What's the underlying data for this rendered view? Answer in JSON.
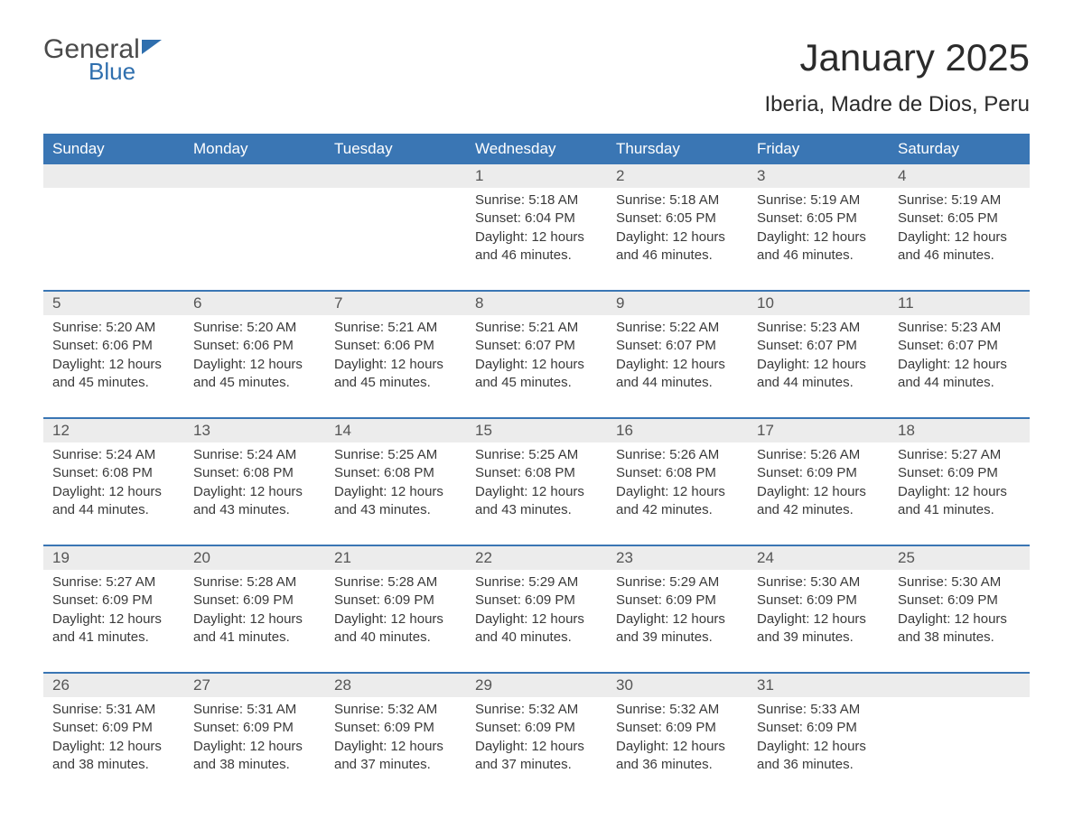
{
  "brand": {
    "word1": "General",
    "word2": "Blue"
  },
  "title": "January 2025",
  "location": "Iberia, Madre de Dios, Peru",
  "colors": {
    "header_bg": "#3a76b4",
    "header_text": "#ffffff",
    "date_row_bg": "#ececec",
    "week_divider": "#3a76b4",
    "body_text": "#3a3a3a",
    "date_text": "#555555",
    "logo_blue": "#2f6fae",
    "logo_gray": "#4a4a4a"
  },
  "fonts": {
    "title_size_pt": 32,
    "location_size_pt": 18,
    "day_header_size_pt": 13,
    "cell_size_pt": 11
  },
  "layout": {
    "columns": 7,
    "rows": 5
  },
  "day_names": [
    "Sunday",
    "Monday",
    "Tuesday",
    "Wednesday",
    "Thursday",
    "Friday",
    "Saturday"
  ],
  "labels": {
    "sunrise": "Sunrise:",
    "sunset": "Sunset:",
    "daylight": "Daylight:"
  },
  "weeks": [
    [
      null,
      null,
      null,
      {
        "n": "1",
        "sunrise": "5:18 AM",
        "sunset": "6:04 PM",
        "daylight": "12 hours and 46 minutes."
      },
      {
        "n": "2",
        "sunrise": "5:18 AM",
        "sunset": "6:05 PM",
        "daylight": "12 hours and 46 minutes."
      },
      {
        "n": "3",
        "sunrise": "5:19 AM",
        "sunset": "6:05 PM",
        "daylight": "12 hours and 46 minutes."
      },
      {
        "n": "4",
        "sunrise": "5:19 AM",
        "sunset": "6:05 PM",
        "daylight": "12 hours and 46 minutes."
      }
    ],
    [
      {
        "n": "5",
        "sunrise": "5:20 AM",
        "sunset": "6:06 PM",
        "daylight": "12 hours and 45 minutes."
      },
      {
        "n": "6",
        "sunrise": "5:20 AM",
        "sunset": "6:06 PM",
        "daylight": "12 hours and 45 minutes."
      },
      {
        "n": "7",
        "sunrise": "5:21 AM",
        "sunset": "6:06 PM",
        "daylight": "12 hours and 45 minutes."
      },
      {
        "n": "8",
        "sunrise": "5:21 AM",
        "sunset": "6:07 PM",
        "daylight": "12 hours and 45 minutes."
      },
      {
        "n": "9",
        "sunrise": "5:22 AM",
        "sunset": "6:07 PM",
        "daylight": "12 hours and 44 minutes."
      },
      {
        "n": "10",
        "sunrise": "5:23 AM",
        "sunset": "6:07 PM",
        "daylight": "12 hours and 44 minutes."
      },
      {
        "n": "11",
        "sunrise": "5:23 AM",
        "sunset": "6:07 PM",
        "daylight": "12 hours and 44 minutes."
      }
    ],
    [
      {
        "n": "12",
        "sunrise": "5:24 AM",
        "sunset": "6:08 PM",
        "daylight": "12 hours and 44 minutes."
      },
      {
        "n": "13",
        "sunrise": "5:24 AM",
        "sunset": "6:08 PM",
        "daylight": "12 hours and 43 minutes."
      },
      {
        "n": "14",
        "sunrise": "5:25 AM",
        "sunset": "6:08 PM",
        "daylight": "12 hours and 43 minutes."
      },
      {
        "n": "15",
        "sunrise": "5:25 AM",
        "sunset": "6:08 PM",
        "daylight": "12 hours and 43 minutes."
      },
      {
        "n": "16",
        "sunrise": "5:26 AM",
        "sunset": "6:08 PM",
        "daylight": "12 hours and 42 minutes."
      },
      {
        "n": "17",
        "sunrise": "5:26 AM",
        "sunset": "6:09 PM",
        "daylight": "12 hours and 42 minutes."
      },
      {
        "n": "18",
        "sunrise": "5:27 AM",
        "sunset": "6:09 PM",
        "daylight": "12 hours and 41 minutes."
      }
    ],
    [
      {
        "n": "19",
        "sunrise": "5:27 AM",
        "sunset": "6:09 PM",
        "daylight": "12 hours and 41 minutes."
      },
      {
        "n": "20",
        "sunrise": "5:28 AM",
        "sunset": "6:09 PM",
        "daylight": "12 hours and 41 minutes."
      },
      {
        "n": "21",
        "sunrise": "5:28 AM",
        "sunset": "6:09 PM",
        "daylight": "12 hours and 40 minutes."
      },
      {
        "n": "22",
        "sunrise": "5:29 AM",
        "sunset": "6:09 PM",
        "daylight": "12 hours and 40 minutes."
      },
      {
        "n": "23",
        "sunrise": "5:29 AM",
        "sunset": "6:09 PM",
        "daylight": "12 hours and 39 minutes."
      },
      {
        "n": "24",
        "sunrise": "5:30 AM",
        "sunset": "6:09 PM",
        "daylight": "12 hours and 39 minutes."
      },
      {
        "n": "25",
        "sunrise": "5:30 AM",
        "sunset": "6:09 PM",
        "daylight": "12 hours and 38 minutes."
      }
    ],
    [
      {
        "n": "26",
        "sunrise": "5:31 AM",
        "sunset": "6:09 PM",
        "daylight": "12 hours and 38 minutes."
      },
      {
        "n": "27",
        "sunrise": "5:31 AM",
        "sunset": "6:09 PM",
        "daylight": "12 hours and 38 minutes."
      },
      {
        "n": "28",
        "sunrise": "5:32 AM",
        "sunset": "6:09 PM",
        "daylight": "12 hours and 37 minutes."
      },
      {
        "n": "29",
        "sunrise": "5:32 AM",
        "sunset": "6:09 PM",
        "daylight": "12 hours and 37 minutes."
      },
      {
        "n": "30",
        "sunrise": "5:32 AM",
        "sunset": "6:09 PM",
        "daylight": "12 hours and 36 minutes."
      },
      {
        "n": "31",
        "sunrise": "5:33 AM",
        "sunset": "6:09 PM",
        "daylight": "12 hours and 36 minutes."
      },
      null
    ]
  ]
}
